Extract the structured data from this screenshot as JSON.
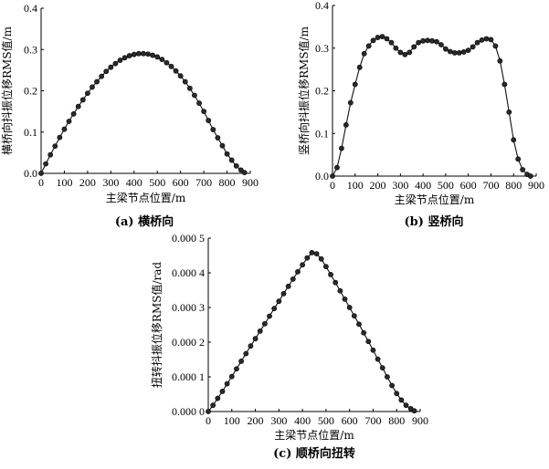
{
  "chart_data": [
    {
      "type": "line",
      "caption": "(a) 横桥向",
      "xlabel": "主梁节点位置/m",
      "ylabel": "横桥向抖振位移RMS值/m",
      "xlim": [
        0,
        900
      ],
      "ylim": [
        0,
        0.4
      ],
      "xticks": [
        0,
        100,
        200,
        300,
        400,
        500,
        600,
        700,
        800,
        900
      ],
      "yticks": [
        0,
        0.1,
        0.2,
        0.3,
        0.4
      ],
      "ytick_labels": [
        "0.0",
        "0.1",
        "0.2",
        "0.3",
        "0.4"
      ],
      "grid": false,
      "series": [
        {
          "marker": "filled-circle",
          "x": [
            0,
            20,
            40,
            60,
            80,
            100,
            120,
            140,
            160,
            180,
            200,
            220,
            240,
            260,
            280,
            300,
            320,
            340,
            360,
            380,
            400,
            420,
            440,
            460,
            480,
            500,
            520,
            540,
            560,
            580,
            600,
            620,
            640,
            660,
            680,
            700,
            720,
            740,
            760,
            780,
            800,
            820,
            840,
            860,
            875
          ],
          "y": [
            0.0,
            0.023,
            0.045,
            0.066,
            0.087,
            0.107,
            0.126,
            0.144,
            0.162,
            0.178,
            0.194,
            0.209,
            0.222,
            0.235,
            0.247,
            0.257,
            0.266,
            0.274,
            0.28,
            0.285,
            0.288,
            0.29,
            0.29,
            0.289,
            0.286,
            0.282,
            0.276,
            0.268,
            0.259,
            0.248,
            0.236,
            0.222,
            0.206,
            0.189,
            0.17,
            0.15,
            0.128,
            0.106,
            0.086,
            0.067,
            0.047,
            0.032,
            0.018,
            0.008,
            0.002
          ]
        }
      ]
    },
    {
      "type": "line",
      "caption": "(b) 竖桥向",
      "xlabel": "主梁节点位置/m",
      "ylabel": "竖桥向抖振位移RMS值/m",
      "xlim": [
        0,
        900
      ],
      "ylim": [
        0,
        0.4
      ],
      "xticks": [
        0,
        100,
        200,
        300,
        400,
        500,
        600,
        700,
        800,
        900
      ],
      "yticks": [
        0,
        0.1,
        0.2,
        0.3,
        0.4
      ],
      "ytick_labels": [
        "0.0",
        "0.1",
        "0.2",
        "0.3",
        "0.4"
      ],
      "grid": false,
      "series": [
        {
          "marker": "filled-circle",
          "x": [
            0,
            20,
            40,
            60,
            80,
            100,
            120,
            140,
            160,
            180,
            200,
            220,
            240,
            260,
            280,
            300,
            320,
            340,
            360,
            380,
            400,
            420,
            440,
            460,
            480,
            500,
            520,
            540,
            560,
            580,
            600,
            620,
            640,
            660,
            680,
            700,
            720,
            740,
            760,
            780,
            800,
            820,
            840,
            860,
            875
          ],
          "y": [
            0.0,
            0.02,
            0.065,
            0.12,
            0.172,
            0.215,
            0.255,
            0.287,
            0.305,
            0.318,
            0.325,
            0.327,
            0.322,
            0.313,
            0.3,
            0.29,
            0.285,
            0.29,
            0.303,
            0.313,
            0.317,
            0.318,
            0.317,
            0.315,
            0.308,
            0.298,
            0.292,
            0.289,
            0.289,
            0.291,
            0.295,
            0.303,
            0.313,
            0.319,
            0.322,
            0.32,
            0.305,
            0.27,
            0.215,
            0.15,
            0.085,
            0.04,
            0.015,
            0.004,
            0.0
          ]
        }
      ]
    },
    {
      "type": "line",
      "caption": "(c) 顺桥向扭转",
      "xlabel": "主梁节点位置/m",
      "ylabel": "扭转抖振位移RMS值/rad",
      "xlim": [
        0,
        900
      ],
      "ylim": [
        0,
        0.0005
      ],
      "xticks": [
        0,
        100,
        200,
        300,
        400,
        500,
        600,
        700,
        800,
        900
      ],
      "yticks": [
        0,
        0.0001,
        0.0002,
        0.0003,
        0.0004,
        0.0005
      ],
      "ytick_labels": [
        "0.000 0",
        "0.000 1",
        "0.000 2",
        "0.000 3",
        "0.000 4",
        "0.000 5"
      ],
      "grid": false,
      "series": [
        {
          "marker": "filled-circle",
          "x": [
            0,
            20,
            40,
            60,
            80,
            100,
            120,
            140,
            160,
            180,
            200,
            220,
            240,
            260,
            280,
            300,
            320,
            340,
            360,
            380,
            400,
            420,
            440,
            460,
            480,
            500,
            520,
            540,
            560,
            580,
            600,
            620,
            640,
            660,
            680,
            700,
            720,
            740,
            760,
            780,
            800,
            820,
            840,
            860,
            875
          ],
          "y": [
            0.0,
            1.8e-05,
            3.8e-05,
            5.8e-05,
            8e-05,
            0.000101,
            0.000123,
            0.000145,
            0.000167,
            0.000189,
            0.00021,
            0.000232,
            0.000253,
            0.000275,
            0.000297,
            0.000318,
            0.00034,
            0.000361,
            0.000382,
            0.000403,
            0.000423,
            0.000443,
            0.000458,
            0.000455,
            0.00044,
            0.000418,
            0.000395,
            0.000372,
            0.000348,
            0.000324,
            0.0003,
            0.000276,
            0.000252,
            0.000227,
            0.000202,
            0.000177,
            0.000151,
            0.000126,
            0.0001,
            7.5e-05,
            5.2e-05,
            3.3e-05,
            1.8e-05,
            8e-06,
            2e-06
          ]
        }
      ]
    }
  ]
}
